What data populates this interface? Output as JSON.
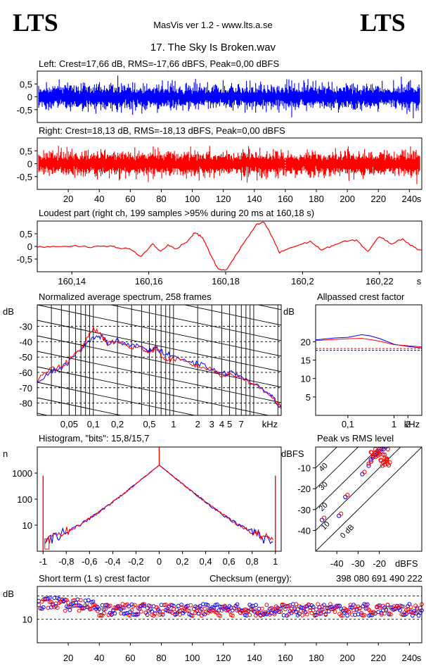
{
  "header": {
    "logo_left": "LTS",
    "logo_right": "LTS",
    "app_title": "MasVis ver 1.2 - www.lts.a.se",
    "file_title": "17. The Sky Is Broken.wav"
  },
  "colors": {
    "left": "#0000ff",
    "right": "#ff0000",
    "grid": "#000000"
  },
  "chart_data": [
    {
      "id": "left-wave",
      "type": "area",
      "title": "Left: Crest=17,66 dB, RMS=-17,66 dBFS, Peak=0,00 dBFS",
      "ytick_labels": [
        "0,5",
        "0",
        "-0,5"
      ],
      "ylim": [
        -1,
        1
      ],
      "xlim": [
        0,
        248
      ],
      "crest_db": 17.66,
      "rms_dbfs": -17.66,
      "peak_dbfs": 0.0
    },
    {
      "id": "right-wave",
      "type": "area",
      "title": "Right: Crest=18,13 dB, RMS=-18,13 dBFS, Peak=0,00 dBFS",
      "ytick_labels": [
        "0,5",
        "0",
        "-0,5"
      ],
      "xtick_labels": [
        "20",
        "40",
        "60",
        "80",
        "100",
        "120",
        "140",
        "160",
        "180",
        "200",
        "220",
        "240",
        "s"
      ],
      "ylim": [
        -1,
        1
      ],
      "xlim": [
        0,
        248
      ],
      "crest_db": 18.13,
      "rms_dbfs": -18.13,
      "peak_dbfs": 0.0
    },
    {
      "id": "loudest-part",
      "type": "line",
      "title": "Loudest part (right ch, 199 samples >95% during 20 ms at 160,18 s)",
      "ytick_labels": [
        "0,5",
        "0",
        "-0,5"
      ],
      "xtick_labels": [
        "160,14",
        "160,16",
        "160,18",
        "160,2",
        "160,22",
        "s"
      ],
      "xlim": [
        160.131,
        160.231
      ],
      "ylim": [
        -1,
        1
      ],
      "x": [
        160.131,
        160.135,
        160.14,
        160.145,
        160.15,
        160.152,
        160.155,
        160.158,
        160.161,
        160.163,
        160.165,
        160.167,
        160.17,
        160.172,
        160.174,
        160.176,
        160.178,
        160.18,
        160.182,
        160.185,
        160.188,
        160.19,
        160.192,
        160.194,
        160.196,
        160.199,
        160.202,
        160.205,
        160.208,
        160.211,
        160.214,
        160.217,
        160.22,
        160.223,
        160.226,
        160.229,
        160.231
      ],
      "y": [
        -0.02,
        0.0,
        0.02,
        -0.02,
        0.02,
        -0.05,
        -0.1,
        -0.4,
        0.1,
        -0.2,
        0.05,
        -0.1,
        0.2,
        0.55,
        0.35,
        -0.3,
        -0.9,
        -0.95,
        -0.5,
        0.2,
        0.85,
        0.95,
        0.4,
        -0.25,
        -0.1,
        0.05,
        0.2,
        -0.15,
        0.05,
        0.2,
        0.25,
        -0.2,
        0.4,
        0.1,
        0.3,
        -0.05,
        -0.15
      ]
    },
    {
      "id": "spectrum",
      "type": "line",
      "title": "Normalized average spectrum, 258 frames",
      "ylabel": "dB",
      "ytick_labels": [
        "-30",
        "-40",
        "-50",
        "-60",
        "-70",
        "-80"
      ],
      "xtick_labels": [
        "0,05",
        "0,1",
        "0,2",
        "0,5",
        "1",
        "2",
        "3",
        "4",
        "5",
        "7",
        "kHz"
      ],
      "xlim": [
        0.02,
        22
      ],
      "ylim": [
        -88,
        -16
      ],
      "x_khz": [
        0.02,
        0.03,
        0.04,
        0.05,
        0.07,
        0.08,
        0.1,
        0.13,
        0.15,
        0.2,
        0.3,
        0.4,
        0.5,
        0.6,
        0.8,
        1.0,
        1.5,
        2.0,
        3.0,
        4.0,
        5.0,
        7.0,
        10.0,
        14.0,
        18.0,
        22.0
      ],
      "series": [
        {
          "name": "Left",
          "values": [
            -66,
            -59,
            -57,
            -53,
            -45,
            -41,
            -37,
            -37,
            -41,
            -39,
            -43,
            -43,
            -46,
            -44,
            -48,
            -49,
            -54,
            -54,
            -58,
            -61,
            -60,
            -62,
            -68,
            -72,
            -77,
            -84
          ]
        },
        {
          "name": "Right",
          "values": [
            -65,
            -58,
            -56,
            -52,
            -45,
            -40,
            -31,
            -37,
            -41,
            -40,
            -44,
            -44,
            -47,
            -44,
            -52,
            -51,
            -54,
            -56,
            -58,
            -62,
            -61,
            -63,
            -68,
            -72,
            -77,
            -84
          ]
        }
      ]
    },
    {
      "id": "allpassed-crest",
      "type": "line",
      "title": "Allpassed crest factor",
      "ylabel": "dB",
      "ytick_labels": [
        "20",
        "15",
        "10",
        "5"
      ],
      "xtick_labels": [
        "0,1",
        "1",
        "2",
        "kHz"
      ],
      "xlim": [
        0.02,
        4
      ],
      "ylim": [
        0,
        30
      ],
      "x_khz": [
        0.02,
        0.05,
        0.1,
        0.2,
        0.3,
        0.5,
        1.0,
        2.0,
        4.0
      ],
      "series": [
        {
          "name": "Left",
          "values": [
            20.5,
            21.0,
            21.2,
            21.9,
            21.6,
            20.8,
            19.3,
            18.7,
            18.3
          ]
        },
        {
          "name": "Right",
          "values": [
            20.3,
            20.6,
            20.8,
            20.9,
            20.6,
            20.1,
            19.2,
            18.9,
            18.6
          ]
        }
      ],
      "reference_lines": [
        {
          "name": "Left",
          "value": 17.66
        },
        {
          "name": "Right",
          "value": 18.13
        }
      ]
    },
    {
      "id": "histogram",
      "type": "line",
      "title": "Histogram, \"bits\": 15,8/15,7",
      "ylabel": "n",
      "ytick_labels": [
        "1000",
        "100",
        "10"
      ],
      "xtick_labels": [
        "-1",
        "-0,8",
        "-0,6",
        "-0,4",
        "-0,2",
        "0",
        "0,2",
        "0,4",
        "0,6",
        "0,8",
        "1"
      ],
      "xlim": [
        -1.05,
        1.05
      ],
      "ylim": [
        1,
        10000
      ],
      "bit_depth_left": 15.8,
      "bit_depth_right": 15.7
    },
    {
      "id": "peak-vs-rms",
      "type": "scatter",
      "title": "Peak vs RMS level",
      "ylabel": "dBFS",
      "xlabel": "dBFS",
      "ytick_labels": [
        "-10",
        "-20",
        "-30",
        "-40"
      ],
      "xtick_labels": [
        "-40",
        "-30",
        "-20"
      ],
      "diagonal_labels": [
        "40",
        "30",
        "20",
        "10",
        "0 dB"
      ],
      "xlim": [
        -50,
        0
      ],
      "ylim": [
        -50,
        0
      ],
      "series": [
        {
          "name": "Left",
          "points": [
            [
              -47,
              -35
            ],
            [
              -39,
              -33
            ],
            [
              -36,
              -24
            ],
            [
              -28,
              -13
            ],
            [
              -25,
              -9
            ],
            [
              -24,
              -6
            ],
            [
              -23,
              -5
            ],
            [
              -22,
              -4
            ],
            [
              -21,
              -3
            ],
            [
              -20,
              -2
            ],
            [
              -19,
              -1
            ],
            [
              -18,
              -1
            ],
            [
              -17,
              0
            ]
          ]
        },
        {
          "name": "Right",
          "points": [
            [
              -46,
              -34
            ],
            [
              -38,
              -32
            ],
            [
              -35,
              -23
            ],
            [
              -27,
              -12
            ],
            [
              -25,
              -8
            ],
            [
              -24,
              -7
            ],
            [
              -23,
              -4
            ],
            [
              -22,
              -3
            ],
            [
              -21,
              -2
            ],
            [
              -20,
              -1
            ],
            [
              -19,
              -2
            ],
            [
              -18,
              0
            ],
            [
              -16,
              -1
            ]
          ]
        }
      ]
    },
    {
      "id": "short-term-crest",
      "type": "scatter",
      "title": "Short term (1 s) crest factor",
      "checksum_label": "Checksum (energy):",
      "checksum_value": "398 080 691 490 222",
      "ylabel": "dB",
      "ytick_labels": [
        "10"
      ],
      "xtick_labels": [
        "20",
        "40",
        "60",
        "80",
        "100",
        "120",
        "140",
        "160",
        "180",
        "200",
        "220",
        "240",
        "s"
      ],
      "xlim": [
        0,
        248
      ],
      "ylim": [
        0,
        24
      ],
      "series_note_left_mean": 17.66,
      "series_note_right_mean": 18.13
    }
  ]
}
